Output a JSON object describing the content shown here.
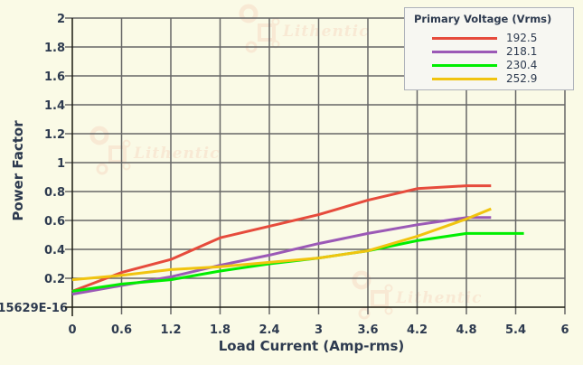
{
  "chart_data": {
    "type": "line",
    "title": "",
    "xlabel": "Load Current (Amp-rms)",
    "ylabel": "Power Factor",
    "xlim": [
      0,
      6
    ],
    "ylim": [
      0,
      2
    ],
    "x_ticks": [
      "0",
      "0.6",
      "1.2",
      "1.8",
      "2.4",
      "3",
      "3.6",
      "4.2",
      "4.8",
      "5.4",
      "6"
    ],
    "y_ticks": [
      "15629E-16",
      "0.2",
      "0.4",
      "0.6",
      "0.8",
      "1",
      "1.2",
      "1.4",
      "1.6",
      "1.8",
      "2"
    ],
    "grid": true,
    "legend": {
      "title": "Primary Voltage (Vrms)",
      "position": "top-right"
    },
    "series": [
      {
        "name": "192.5",
        "color": "#e64b3c",
        "x": [
          0,
          0.6,
          1.2,
          1.8,
          2.4,
          3.0,
          3.6,
          4.2,
          4.8,
          5.1
        ],
        "y": [
          0.11,
          0.24,
          0.33,
          0.48,
          0.56,
          0.64,
          0.74,
          0.82,
          0.84,
          0.84
        ]
      },
      {
        "name": "218.1",
        "color": "#9b59b6",
        "x": [
          0,
          0.6,
          1.2,
          1.8,
          2.4,
          3.0,
          3.6,
          4.2,
          4.8,
          5.1
        ],
        "y": [
          0.09,
          0.15,
          0.21,
          0.29,
          0.36,
          0.44,
          0.51,
          0.57,
          0.62,
          0.62
        ]
      },
      {
        "name": "230.4",
        "color": "#00ee00",
        "x": [
          0,
          0.6,
          1.2,
          1.8,
          2.4,
          3.0,
          3.6,
          4.2,
          4.8,
          5.5
        ],
        "y": [
          0.11,
          0.16,
          0.19,
          0.25,
          0.3,
          0.34,
          0.39,
          0.46,
          0.51,
          0.51
        ]
      },
      {
        "name": "252.9",
        "color": "#f1c40f",
        "x": [
          0,
          0.6,
          1.2,
          1.8,
          2.4,
          3.0,
          3.6,
          4.2,
          4.8,
          5.1
        ],
        "y": [
          0.19,
          0.22,
          0.26,
          0.28,
          0.31,
          0.34,
          0.39,
          0.49,
          0.61,
          0.68
        ]
      }
    ]
  },
  "watermark": {
    "text": "Lithentic"
  },
  "colors": {
    "background": "#fafae6",
    "grid": "#666666",
    "axis": "#1a1a1a",
    "text": "#2d3a4f"
  }
}
